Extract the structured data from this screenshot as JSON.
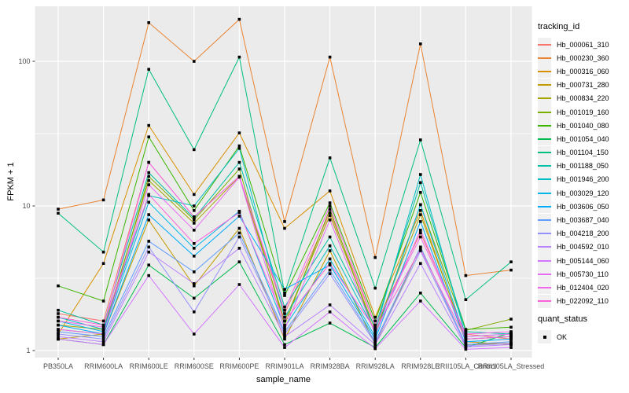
{
  "figure": {
    "background": "#FFFFFF",
    "panel_background": "#EBEBEB",
    "gridline_color": "#FFFFFF",
    "axis_text_color": "#4D4D4D",
    "tick_mark_color": "#333333",
    "title_text_color": "#000000",
    "point_color": "#000000"
  },
  "legend": {
    "tracking_title": "tracking_id",
    "quant_title": "quant_status",
    "quant_items": [
      {
        "label": "OK",
        "marker": "black-square"
      }
    ]
  },
  "chart_data": {
    "type": "line",
    "title": "",
    "xlabel": "sample_name",
    "ylabel": "FPKM + 1",
    "y_scale": "log10",
    "y_ticks": [
      1,
      10,
      100
    ],
    "y_minor_ticks": [
      3.162,
      31.623
    ],
    "ylim": [
      1,
      230
    ],
    "grid": true,
    "legend_position": "right",
    "point_marker": "black-square",
    "categories": [
      "PB350LA",
      "RRIM600LA",
      "RRIM600LE",
      "RRIM600SE",
      "RRIM600PE",
      "RRIM901LA",
      "RRIM928BA",
      "RRIM928LA",
      "RRIM928LE",
      "RRII105LA_Control",
      "RRII105LA_Stressed"
    ],
    "series": [
      {
        "name": "Hb_000061_310",
        "color": "#F8766D",
        "values": [
          1.8,
          1.6,
          20,
          8.4,
          16,
          1.8,
          9.0,
          1.5,
          6.5,
          1.3,
          1.2
        ]
      },
      {
        "name": "Hb_000230_360",
        "color": "#EA8331",
        "values": [
          9.5,
          11,
          185,
          100,
          195,
          7.8,
          107,
          4.4,
          132,
          3.3,
          3.6
        ]
      },
      {
        "name": "Hb_000316_060",
        "color": "#D89000",
        "values": [
          1.3,
          4.0,
          36,
          12,
          32,
          7.0,
          12.7,
          1.7,
          9.3,
          1.15,
          1.1
        ]
      },
      {
        "name": "Hb_000731_280",
        "color": "#C09B00",
        "values": [
          1.2,
          1.3,
          8.0,
          2.8,
          7.0,
          1.2,
          4.9,
          1.1,
          5.2,
          1.1,
          1.12
        ]
      },
      {
        "name": "Hb_000834_220",
        "color": "#A3A500",
        "values": [
          1.5,
          1.4,
          15,
          7.6,
          16,
          1.6,
          8.6,
          1.4,
          8.7,
          1.2,
          1.25
        ]
      },
      {
        "name": "Hb_001019_160",
        "color": "#7CAE00",
        "values": [
          1.4,
          1.3,
          16,
          8.0,
          18,
          1.5,
          9.5,
          1.3,
          10.2,
          1.38,
          1.65
        ]
      },
      {
        "name": "Hb_001040_080",
        "color": "#39B600",
        "values": [
          2.8,
          2.2,
          30,
          9.3,
          26,
          2.4,
          10.5,
          1.6,
          12.4,
          1.4,
          1.45
        ]
      },
      {
        "name": "Hb_001054_040",
        "color": "#00BB4E",
        "values": [
          1.2,
          1.1,
          3.9,
          2.3,
          4.1,
          1.1,
          1.55,
          1.05,
          2.5,
          1.05,
          1.33
        ]
      },
      {
        "name": "Hb_001104_150",
        "color": "#00BF7D",
        "values": [
          8.9,
          4.8,
          88,
          24.5,
          107,
          2.5,
          21.5,
          2.7,
          28.6,
          2.25,
          4.1
        ]
      },
      {
        "name": "Hb_001188_050",
        "color": "#00C1A3",
        "values": [
          1.9,
          1.5,
          17,
          8.2,
          20,
          2.0,
          6.1,
          1.45,
          14.5,
          1.35,
          1.3
        ]
      },
      {
        "name": "Hb_001946_200",
        "color": "#00BFC4",
        "values": [
          1.7,
          1.4,
          11.8,
          10.0,
          25,
          1.7,
          5.3,
          1.35,
          16.5,
          1.25,
          1.3
        ]
      },
      {
        "name": "Hb_003029_120",
        "color": "#00B8E7",
        "values": [
          1.6,
          1.35,
          10.6,
          5.1,
          9.2,
          1.45,
          4.3,
          1.25,
          10.2,
          1.2,
          1.25
        ]
      },
      {
        "name": "Hb_003606_050",
        "color": "#00ACFC",
        "values": [
          1.5,
          1.3,
          8.7,
          4.5,
          8.5,
          2.65,
          3.9,
          1.2,
          7.8,
          1.15,
          1.2
        ]
      },
      {
        "name": "Hb_003687_040",
        "color": "#619CFF",
        "values": [
          1.35,
          1.25,
          5.7,
          3.5,
          6.5,
          1.35,
          3.6,
          1.15,
          5.2,
          1.1,
          1.15
        ]
      },
      {
        "name": "Hb_004218_200",
        "color": "#9590FF",
        "values": [
          1.3,
          1.2,
          5.2,
          1.85,
          6.1,
          1.3,
          3.4,
          1.12,
          4.9,
          1.08,
          1.12
        ]
      },
      {
        "name": "Hb_004592_010",
        "color": "#B983FF",
        "values": [
          1.25,
          1.15,
          4.8,
          2.9,
          5.1,
          1.25,
          2.07,
          1.1,
          4.0,
          1.06,
          1.1
        ]
      },
      {
        "name": "Hb_005144_060",
        "color": "#D376FF",
        "values": [
          1.2,
          1.1,
          3.3,
          1.3,
          2.86,
          1.05,
          1.85,
          1.03,
          2.2,
          1.02,
          1.05
        ]
      },
      {
        "name": "Hb_005730_110",
        "color": "#E76BF3",
        "values": [
          1.4,
          1.3,
          14,
          6.8,
          15.8,
          1.4,
          8.0,
          1.3,
          6.8,
          1.25,
          1.3
        ]
      },
      {
        "name": "Hb_012404_020",
        "color": "#F265E8",
        "values": [
          1.6,
          1.45,
          20,
          8.4,
          16,
          1.9,
          10,
          1.5,
          6.1,
          1.3,
          1.35
        ]
      },
      {
        "name": "Hb_022092_110",
        "color": "#FA62DB",
        "values": [
          1.7,
          1.5,
          12,
          5.5,
          9.0,
          1.6,
          4.0,
          1.4,
          5.0,
          1.2,
          1.25
        ]
      }
    ]
  }
}
